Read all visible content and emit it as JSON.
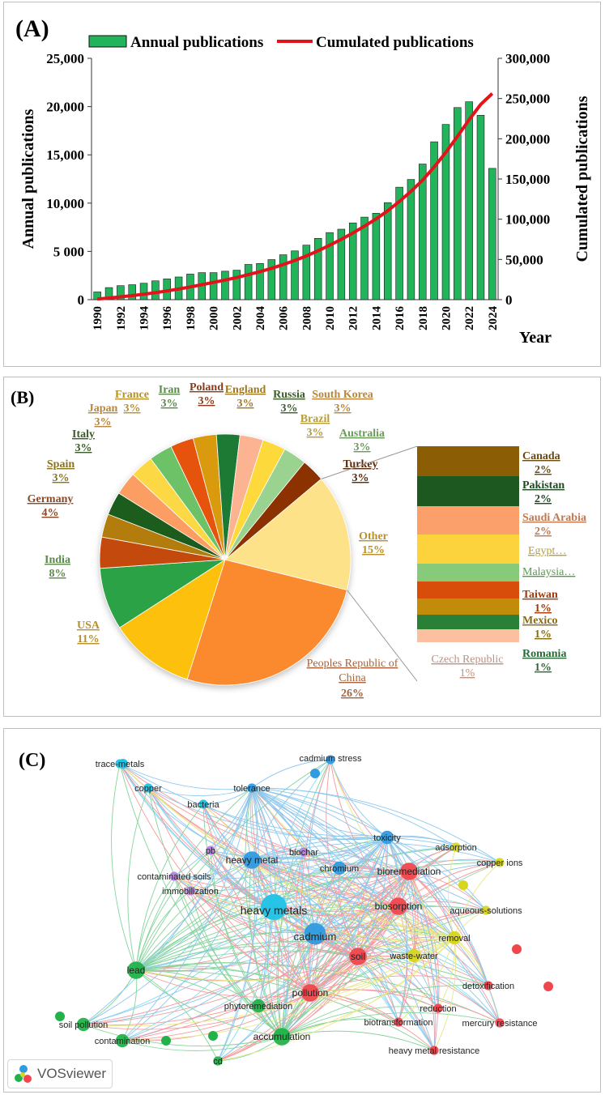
{
  "panelA": {
    "label": "(A)"
  },
  "panelB": {
    "label": "(B)"
  },
  "panelC": {
    "label": "(C)",
    "badge": "VOSviewer"
  },
  "colors": {
    "bar": "#22b45a",
    "line": "#e3131b"
  },
  "chart_data": [
    {
      "type": "bar",
      "title": "",
      "legend": [
        "Annual publications",
        "Cumulated publications"
      ],
      "xlabel": "Year",
      "ylabel": "Annual publications",
      "y2label": "Cumulated publications",
      "ylim": [
        0,
        25000
      ],
      "y2lim": [
        0,
        300000
      ],
      "yticks": [
        "0",
        "5 000",
        "10,000",
        "15,000",
        "20,000",
        "25,000"
      ],
      "y2ticks": [
        "0",
        "50,000",
        "100,000",
        "150,000",
        "200,000",
        "250,000",
        "300,000"
      ],
      "xticks": [
        "1990",
        "1992",
        "1994",
        "1996",
        "1998",
        "2000",
        "2002",
        "2004",
        "2006",
        "2008",
        "2010",
        "2012",
        "2014",
        "2016",
        "2018",
        "2020",
        "2022",
        "2024"
      ],
      "categories": [
        1990,
        1991,
        1992,
        1993,
        1994,
        1995,
        1996,
        1997,
        1998,
        1999,
        2000,
        2001,
        2002,
        2003,
        2004,
        2005,
        2006,
        2007,
        2008,
        2009,
        2010,
        2011,
        2012,
        2013,
        2014,
        2015,
        2016,
        2017,
        2018,
        2019,
        2020,
        2021,
        2022,
        2023,
        2024
      ],
      "series": [
        {
          "name": "Annual publications",
          "axis": "left",
          "values": [
            800,
            1250,
            1450,
            1550,
            1700,
            1950,
            2150,
            2350,
            2650,
            2800,
            2800,
            2950,
            3050,
            3650,
            3750,
            4150,
            4650,
            5050,
            5650,
            6350,
            6950,
            7300,
            7950,
            8550,
            8950,
            10050,
            11650,
            12450,
            14050,
            16350,
            18150,
            19900,
            20500,
            19100,
            13600
          ]
        },
        {
          "name": "Cumulated publications",
          "axis": "right",
          "values": [
            800,
            2050,
            3500,
            5050,
            6750,
            8700,
            10850,
            13200,
            15850,
            18650,
            21450,
            24400,
            27450,
            31100,
            34850,
            39000,
            43650,
            48700,
            54350,
            60700,
            67650,
            74950,
            82900,
            91450,
            100400,
            110450,
            122100,
            134550,
            148600,
            164950,
            183100,
            203000,
            223500,
            242600,
            256200
          ]
        }
      ]
    },
    {
      "type": "pie",
      "title": "",
      "slices": [
        {
          "label": "Peoples Republic of China",
          "pct": "26%",
          "value": 26,
          "color": "#fb8a2e"
        },
        {
          "label": "USA",
          "pct": "11%",
          "value": 11,
          "color": "#fcc00a"
        },
        {
          "label": "India",
          "pct": "8%",
          "value": 8,
          "color": "#29a244"
        },
        {
          "label": "Germany",
          "pct": "4%",
          "value": 4,
          "color": "#c44a0b"
        },
        {
          "label": "Spain",
          "pct": "3%",
          "value": 3,
          "color": "#b37d09"
        },
        {
          "label": "Italy",
          "pct": "3%",
          "value": 3,
          "color": "#1e5b1f"
        },
        {
          "label": "Japan",
          "pct": "3%",
          "value": 3,
          "color": "#fc9e63"
        },
        {
          "label": "France",
          "pct": "3%",
          "value": 3,
          "color": "#fdd845"
        },
        {
          "label": "Iran",
          "pct": "3%",
          "value": 3,
          "color": "#6dc268"
        },
        {
          "label": "Poland",
          "pct": "3%",
          "value": 3,
          "color": "#e65211"
        },
        {
          "label": "England",
          "pct": "3%",
          "value": 3,
          "color": "#d99a0a"
        },
        {
          "label": "Russia",
          "pct": "3%",
          "value": 3,
          "color": "#1b7a34"
        },
        {
          "label": "South Korea",
          "pct": "3%",
          "value": 3,
          "color": "#fcb391"
        },
        {
          "label": "Brazil",
          "pct": "3%",
          "value": 3,
          "color": "#fdd93b"
        },
        {
          "label": "Australia",
          "pct": "3%",
          "value": 3,
          "color": "#9ad38f"
        },
        {
          "label": "Turkey",
          "pct": "3%",
          "value": 3,
          "color": "#8c3006"
        },
        {
          "label": "Other",
          "pct": "15%",
          "value": 15,
          "color": "#fee28a"
        }
      ],
      "other_breakdown": [
        {
          "label": "Canada",
          "pct": "2%",
          "color": "#8b5e06"
        },
        {
          "label": "Pakistan",
          "pct": "2%",
          "color": "#1d5821"
        },
        {
          "label": "Saudi Arabia",
          "pct": "2%",
          "color": "#fca06b"
        },
        {
          "label": "Egypt…",
          "pct": "",
          "color": "#fdd33d"
        },
        {
          "label": "Malaysia…",
          "pct": "",
          "color": "#87ca79"
        },
        {
          "label": "Taiwan",
          "pct": "1%",
          "color": "#d94d0b"
        },
        {
          "label": "Mexico",
          "pct": "1%",
          "color": "#c18c0a"
        },
        {
          "label": "Romania",
          "pct": "1%",
          "color": "#2a8037"
        },
        {
          "label": "Czech Republic",
          "pct": "1%",
          "color": "#fcc0a0"
        }
      ]
    },
    {
      "type": "network",
      "title": "",
      "clusters": {
        "blue": "#2f9be0",
        "cyan": "#1fc3e6",
        "red": "#f0474e",
        "green": "#22b24a",
        "yellow": "#d6d61e",
        "purple": "#b784e0"
      },
      "nodes": [
        {
          "label": "heavy metals",
          "cluster": "cyan",
          "size": 5
        },
        {
          "label": "heavy metal",
          "cluster": "blue",
          "size": 3
        },
        {
          "label": "cadmium",
          "cluster": "blue",
          "size": 4
        },
        {
          "label": "trace-metals",
          "cluster": "cyan",
          "size": 1
        },
        {
          "label": "copper",
          "cluster": "cyan",
          "size": 1
        },
        {
          "label": "bacteria",
          "cluster": "cyan",
          "size": 1
        },
        {
          "label": "tolerance",
          "cluster": "blue",
          "size": 1
        },
        {
          "label": "cadmium stress",
          "cluster": "blue",
          "size": 1
        },
        {
          "label": "toxicity",
          "cluster": "blue",
          "size": 2
        },
        {
          "label": "chromium",
          "cluster": "blue",
          "size": 2
        },
        {
          "label": "adsorption",
          "cluster": "yellow",
          "size": 1
        },
        {
          "label": "copper ions",
          "cluster": "yellow",
          "size": 1
        },
        {
          "label": "aqueous-solutions",
          "cluster": "yellow",
          "size": 1
        },
        {
          "label": "removal",
          "cluster": "yellow",
          "size": 2
        },
        {
          "label": "waste-water",
          "cluster": "yellow",
          "size": 2
        },
        {
          "label": "pb",
          "cluster": "purple",
          "size": 1
        },
        {
          "label": "biochar",
          "cluster": "purple",
          "size": 1
        },
        {
          "label": "contaminated soils",
          "cluster": "purple",
          "size": 1
        },
        {
          "label": "immobilization",
          "cluster": "purple",
          "size": 1
        },
        {
          "label": "bioremediation",
          "cluster": "red",
          "size": 3
        },
        {
          "label": "biosorption",
          "cluster": "red",
          "size": 3
        },
        {
          "label": "soil",
          "cluster": "red",
          "size": 3
        },
        {
          "label": "pollution",
          "cluster": "red",
          "size": 3
        },
        {
          "label": "detoxification",
          "cluster": "red",
          "size": 1
        },
        {
          "label": "reduction",
          "cluster": "red",
          "size": 1
        },
        {
          "label": "mercury resistance",
          "cluster": "red",
          "size": 1
        },
        {
          "label": "biotransformation",
          "cluster": "red",
          "size": 1
        },
        {
          "label": "heavy metal resistance",
          "cluster": "red",
          "size": 1
        },
        {
          "label": "lead",
          "cluster": "green",
          "size": 3
        },
        {
          "label": "soil pollution",
          "cluster": "green",
          "size": 2
        },
        {
          "label": "contamination",
          "cluster": "green",
          "size": 2
        },
        {
          "label": "phytoremediation",
          "cluster": "green",
          "size": 2
        },
        {
          "label": "accumulation",
          "cluster": "green",
          "size": 3
        },
        {
          "label": "cd",
          "cluster": "green",
          "size": 1
        }
      ]
    }
  ]
}
